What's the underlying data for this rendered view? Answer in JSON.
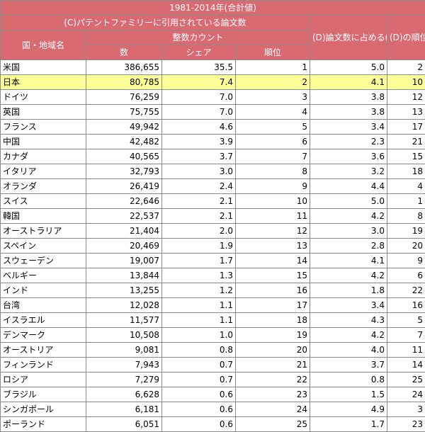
{
  "title": "1981-2014年(合計値)",
  "headers": {
    "group_c": "(C)パテントファミリーに引用されている論文数",
    "country": "国・地域名",
    "integer_count": "整数カウント",
    "count": "数",
    "share": "シェア",
    "rank": "順位",
    "ratio_d": "(D)論文数に占める(C)の割合",
    "rank_d": "(D)の順位"
  },
  "highlight_row": "日本",
  "colors": {
    "header_bg": "#d96a72",
    "highlight_bg": "#ffff99"
  },
  "rows": [
    {
      "country": "米国",
      "count": "386,655",
      "share": "35.5",
      "rank": "1",
      "ratio": "5.0",
      "rank_d": "2"
    },
    {
      "country": "日本",
      "count": "80,785",
      "share": "7.4",
      "rank": "2",
      "ratio": "4.1",
      "rank_d": "10"
    },
    {
      "country": "ドイツ",
      "count": "76,259",
      "share": "7.0",
      "rank": "3",
      "ratio": "3.8",
      "rank_d": "12"
    },
    {
      "country": "英国",
      "count": "75,755",
      "share": "7.0",
      "rank": "4",
      "ratio": "3.8",
      "rank_d": "13"
    },
    {
      "country": "フランス",
      "count": "49,942",
      "share": "4.6",
      "rank": "5",
      "ratio": "3.4",
      "rank_d": "17"
    },
    {
      "country": "中国",
      "count": "42,482",
      "share": "3.9",
      "rank": "6",
      "ratio": "2.3",
      "rank_d": "21"
    },
    {
      "country": "カナダ",
      "count": "40,565",
      "share": "3.7",
      "rank": "7",
      "ratio": "3.6",
      "rank_d": "15"
    },
    {
      "country": "イタリア",
      "count": "32,793",
      "share": "3.0",
      "rank": "8",
      "ratio": "3.2",
      "rank_d": "18"
    },
    {
      "country": "オランダ",
      "count": "26,419",
      "share": "2.4",
      "rank": "9",
      "ratio": "4.4",
      "rank_d": "4"
    },
    {
      "country": "スイス",
      "count": "22,646",
      "share": "2.1",
      "rank": "10",
      "ratio": "5.0",
      "rank_d": "1"
    },
    {
      "country": "韓国",
      "count": "22,537",
      "share": "2.1",
      "rank": "11",
      "ratio": "4.2",
      "rank_d": "8"
    },
    {
      "country": "オーストラリア",
      "count": "21,404",
      "share": "2.0",
      "rank": "12",
      "ratio": "3.0",
      "rank_d": "19"
    },
    {
      "country": "スペイン",
      "count": "20,469",
      "share": "1.9",
      "rank": "13",
      "ratio": "2.8",
      "rank_d": "20"
    },
    {
      "country": "スウェーデン",
      "count": "19,007",
      "share": "1.7",
      "rank": "14",
      "ratio": "4.1",
      "rank_d": "9"
    },
    {
      "country": "ベルギー",
      "count": "13,844",
      "share": "1.3",
      "rank": "15",
      "ratio": "4.2",
      "rank_d": "6"
    },
    {
      "country": "インド",
      "count": "13,255",
      "share": "1.2",
      "rank": "16",
      "ratio": "1.8",
      "rank_d": "22"
    },
    {
      "country": "台湾",
      "count": "12,028",
      "share": "1.1",
      "rank": "17",
      "ratio": "3.4",
      "rank_d": "16"
    },
    {
      "country": "イスラエル",
      "count": "11,577",
      "share": "1.1",
      "rank": "18",
      "ratio": "4.3",
      "rank_d": "5"
    },
    {
      "country": "デンマーク",
      "count": "10,508",
      "share": "1.0",
      "rank": "19",
      "ratio": "4.2",
      "rank_d": "7"
    },
    {
      "country": "オーストリア",
      "count": "9,081",
      "share": "0.8",
      "rank": "20",
      "ratio": "4.0",
      "rank_d": "11"
    },
    {
      "country": "フィンランド",
      "count": "7,943",
      "share": "0.7",
      "rank": "21",
      "ratio": "3.7",
      "rank_d": "14"
    },
    {
      "country": "ロシア",
      "count": "7,279",
      "share": "0.7",
      "rank": "22",
      "ratio": "0.8",
      "rank_d": "25"
    },
    {
      "country": "ブラジル",
      "count": "6,628",
      "share": "0.6",
      "rank": "23",
      "ratio": "1.5",
      "rank_d": "24"
    },
    {
      "country": "シンガポール",
      "count": "6,181",
      "share": "0.6",
      "rank": "24",
      "ratio": "4.9",
      "rank_d": "3"
    },
    {
      "country": "ポーランド",
      "count": "6,051",
      "share": "0.6",
      "rank": "25",
      "ratio": "1.7",
      "rank_d": "23"
    }
  ]
}
